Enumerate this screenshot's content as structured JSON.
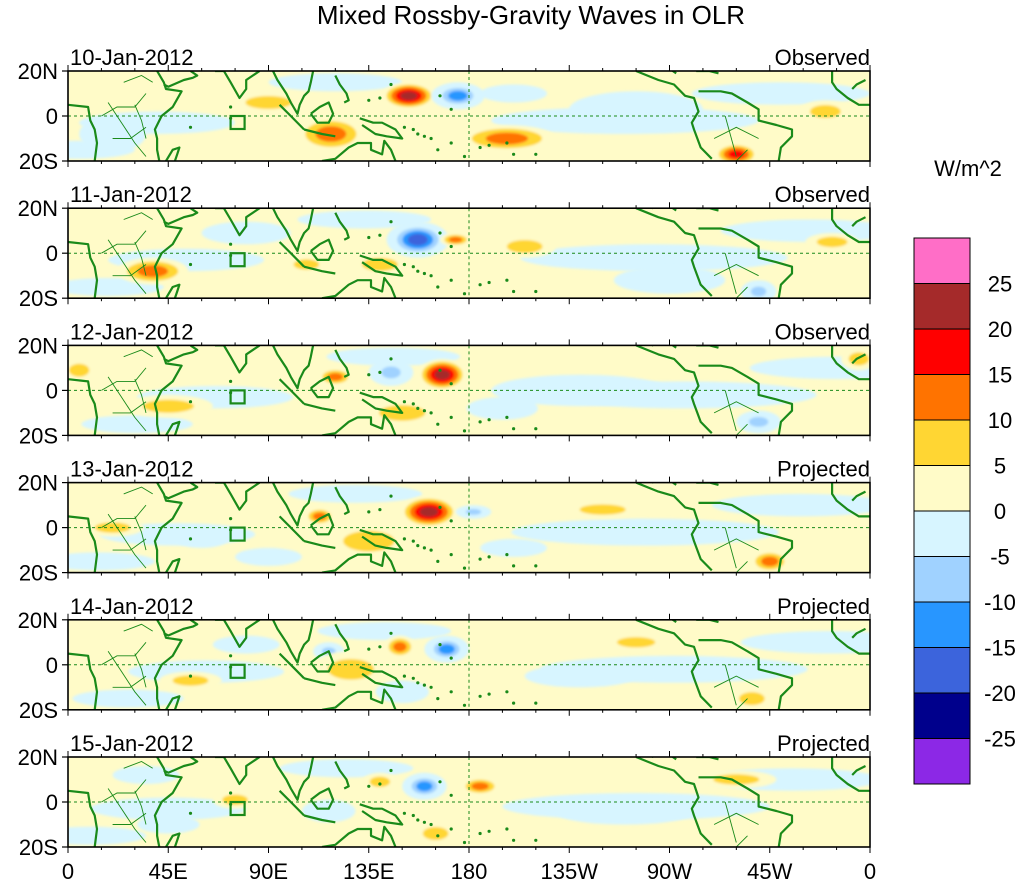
{
  "chart_data": {
    "type": "heatmap",
    "title": "Mixed Rossby-Gravity Waves in OLR",
    "units_label": "W/m^2",
    "x_ticks": [
      "0",
      "45E",
      "90E",
      "135E",
      "180",
      "135W",
      "90W",
      "45W",
      "0"
    ],
    "y_ticks": [
      "20N",
      "0",
      "20S"
    ],
    "lon_range": [
      0,
      360
    ],
    "lat_range": [
      -20,
      20
    ],
    "colorbar": {
      "levels": [
        "25",
        "20",
        "15",
        "10",
        "5",
        "0",
        "-5",
        "-10",
        "-15",
        "-20",
        "-25"
      ],
      "colors": [
        "#ff6ec7",
        "#a52a2a",
        "#ff0000",
        "#ff7300",
        "#ffd633",
        "#fffbc8",
        "#d7f5ff",
        "#a0d2ff",
        "#2896ff",
        "#3c64dc",
        "#00008c",
        "#8c28e6"
      ]
    },
    "panels": [
      {
        "date": "10-Jan-2012",
        "label": "Observed",
        "blobs": [
          {
            "lon": 153,
            "lat": 9,
            "rx": 12,
            "ry": 6,
            "v": 20
          },
          {
            "lon": 175,
            "lat": 9,
            "rx": 12,
            "ry": 6,
            "v": -18
          },
          {
            "lon": 118,
            "lat": -8,
            "rx": 16,
            "ry": 8,
            "v": 14
          },
          {
            "lon": 197,
            "lat": -10,
            "rx": 22,
            "ry": 6,
            "v": 14
          },
          {
            "lon": 300,
            "lat": -17,
            "rx": 10,
            "ry": 5,
            "v": 16
          },
          {
            "lon": 20,
            "lat": -8,
            "rx": 15,
            "ry": 8,
            "v": -9
          },
          {
            "lon": 90,
            "lat": 6,
            "rx": 18,
            "ry": 5,
            "v": 5
          },
          {
            "lon": 200,
            "lat": 10,
            "rx": 15,
            "ry": 4,
            "v": -6
          },
          {
            "lon": 340,
            "lat": 2,
            "rx": 12,
            "ry": 5,
            "v": 6
          },
          {
            "lon": 255,
            "lat": 3,
            "rx": 30,
            "ry": 8,
            "v": -4
          }
        ]
      },
      {
        "date": "11-Jan-2012",
        "label": "Observed",
        "blobs": [
          {
            "lon": 157,
            "lat": 6,
            "rx": 14,
            "ry": 8,
            "v": -22
          },
          {
            "lon": 174,
            "lat": 6,
            "rx": 7,
            "ry": 3,
            "v": 12
          },
          {
            "lon": 38,
            "lat": -8,
            "rx": 16,
            "ry": 6,
            "v": 12
          },
          {
            "lon": 107,
            "lat": -5,
            "rx": 10,
            "ry": 4,
            "v": 7
          },
          {
            "lon": 140,
            "lat": -5,
            "rx": 14,
            "ry": 5,
            "v": 7
          },
          {
            "lon": 205,
            "lat": 3,
            "rx": 14,
            "ry": 5,
            "v": 7
          },
          {
            "lon": 343,
            "lat": 5,
            "rx": 12,
            "ry": 4,
            "v": 9
          },
          {
            "lon": 310,
            "lat": -17,
            "rx": 8,
            "ry": 5,
            "v": -14
          },
          {
            "lon": 270,
            "lat": -12,
            "rx": 25,
            "ry": 6,
            "v": -4
          },
          {
            "lon": 80,
            "lat": 9,
            "rx": 20,
            "ry": 5,
            "v": -4
          }
        ]
      },
      {
        "date": "12-Jan-2012",
        "label": "Observed",
        "blobs": [
          {
            "lon": 168,
            "lat": 7,
            "rx": 11,
            "ry": 7,
            "v": 20
          },
          {
            "lon": 145,
            "lat": 8,
            "rx": 10,
            "ry": 6,
            "v": -14
          },
          {
            "lon": 120,
            "lat": 6,
            "rx": 8,
            "ry": 4,
            "v": 11
          },
          {
            "lon": 150,
            "lat": -10,
            "rx": 18,
            "ry": 6,
            "v": 7
          },
          {
            "lon": 45,
            "lat": -7,
            "rx": 20,
            "ry": 5,
            "v": 6
          },
          {
            "lon": 195,
            "lat": -8,
            "rx": 16,
            "ry": 5,
            "v": -6
          },
          {
            "lon": 310,
            "lat": -14,
            "rx": 10,
            "ry": 5,
            "v": -10
          },
          {
            "lon": 355,
            "lat": 14,
            "rx": 8,
            "ry": 5,
            "v": 8
          },
          {
            "lon": 230,
            "lat": 0,
            "rx": 40,
            "ry": 7,
            "v": -3
          },
          {
            "lon": 5,
            "lat": 9,
            "rx": 8,
            "ry": 5,
            "v": 7
          }
        ]
      },
      {
        "date": "13-Jan-2012",
        "label": "Projected",
        "blobs": [
          {
            "lon": 162,
            "lat": 7,
            "rx": 13,
            "ry": 7,
            "v": 20
          },
          {
            "lon": 182,
            "lat": 7,
            "rx": 8,
            "ry": 3,
            "v": -12
          },
          {
            "lon": 113,
            "lat": 5,
            "rx": 7,
            "ry": 4,
            "v": 12
          },
          {
            "lon": 135,
            "lat": -6,
            "rx": 20,
            "ry": 8,
            "v": 7
          },
          {
            "lon": 315,
            "lat": -15,
            "rx": 9,
            "ry": 5,
            "v": 14
          },
          {
            "lon": 60,
            "lat": -5,
            "rx": 12,
            "ry": 4,
            "v": -9
          },
          {
            "lon": 90,
            "lat": -13,
            "rx": 15,
            "ry": 4,
            "v": -6
          },
          {
            "lon": 200,
            "lat": -9,
            "rx": 15,
            "ry": 4,
            "v": -5
          },
          {
            "lon": 240,
            "lat": 8,
            "rx": 18,
            "ry": 4,
            "v": 5
          },
          {
            "lon": 20,
            "lat": 0,
            "rx": 14,
            "ry": 4,
            "v": 6
          }
        ]
      },
      {
        "date": "14-Jan-2012",
        "label": "Projected",
        "blobs": [
          {
            "lon": 170,
            "lat": 7,
            "rx": 10,
            "ry": 6,
            "v": -18
          },
          {
            "lon": 149,
            "lat": 8,
            "rx": 7,
            "ry": 5,
            "v": 12
          },
          {
            "lon": 117,
            "lat": 6,
            "rx": 7,
            "ry": 4,
            "v": -10
          },
          {
            "lon": 127,
            "lat": -2,
            "rx": 18,
            "ry": 8,
            "v": 6
          },
          {
            "lon": 150,
            "lat": -12,
            "rx": 12,
            "ry": 5,
            "v": -7
          },
          {
            "lon": 55,
            "lat": -7,
            "rx": 14,
            "ry": 4,
            "v": 6
          },
          {
            "lon": 80,
            "lat": 9,
            "rx": 15,
            "ry": 4,
            "v": -6
          },
          {
            "lon": 307,
            "lat": -15,
            "rx": 10,
            "ry": 5,
            "v": 7
          },
          {
            "lon": 230,
            "lat": -5,
            "rx": 25,
            "ry": 5,
            "v": -4
          },
          {
            "lon": 255,
            "lat": 10,
            "rx": 15,
            "ry": 4,
            "v": 5
          }
        ]
      },
      {
        "date": "15-Jan-2012",
        "label": "Projected",
        "blobs": [
          {
            "lon": 160,
            "lat": 7,
            "rx": 10,
            "ry": 6,
            "v": -18
          },
          {
            "lon": 185,
            "lat": 7,
            "rx": 9,
            "ry": 4,
            "v": 12
          },
          {
            "lon": 140,
            "lat": 9,
            "rx": 8,
            "ry": 4,
            "v": 7
          },
          {
            "lon": 117,
            "lat": -4,
            "rx": 12,
            "ry": 5,
            "v": -7
          },
          {
            "lon": 75,
            "lat": 1,
            "rx": 10,
            "ry": 4,
            "v": 7
          },
          {
            "lon": 165,
            "lat": -14,
            "rx": 10,
            "ry": 5,
            "v": 8
          },
          {
            "lon": 45,
            "lat": -10,
            "rx": 14,
            "ry": 4,
            "v": -6
          },
          {
            "lon": 35,
            "lat": 12,
            "rx": 15,
            "ry": 4,
            "v": -5
          },
          {
            "lon": 250,
            "lat": -5,
            "rx": 30,
            "ry": 5,
            "v": -4
          },
          {
            "lon": 300,
            "lat": 10,
            "rx": 18,
            "ry": 4,
            "v": 5
          }
        ]
      }
    ]
  }
}
